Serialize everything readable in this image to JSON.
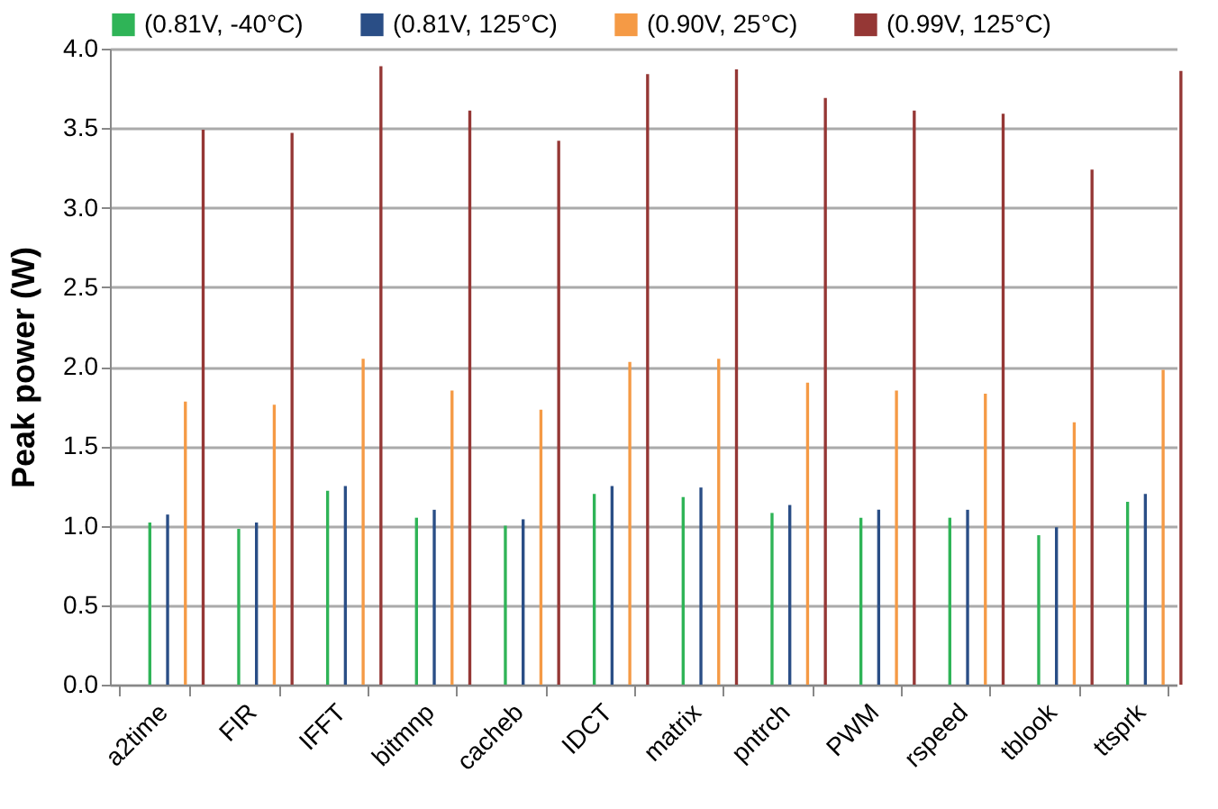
{
  "chart_data": {
    "type": "bar",
    "ylabel": "Peak power (W)",
    "categories": [
      "a2time",
      "FIR",
      "IFFT",
      "bitmnp",
      "cacheb",
      "IDCT",
      "matrix",
      "pntrch",
      "PWM",
      "rspeed",
      "tblook",
      "ttsprk"
    ],
    "series": [
      {
        "name": "(0.81V, -40°C)",
        "color": "#2fb457",
        "values": [
          1.02,
          0.98,
          1.22,
          1.05,
          1.0,
          1.2,
          1.18,
          1.08,
          1.05,
          1.05,
          0.94,
          1.15
        ]
      },
      {
        "name": "(0.81V, 125°C)",
        "color": "#2a4e86",
        "values": [
          1.07,
          1.02,
          1.25,
          1.1,
          1.04,
          1.25,
          1.24,
          1.13,
          1.1,
          1.1,
          0.99,
          1.2
        ]
      },
      {
        "name": "(0.90V, 25°C)",
        "color": "#f59a45",
        "values": [
          1.78,
          1.76,
          2.05,
          1.85,
          1.73,
          2.03,
          2.05,
          1.9,
          1.85,
          1.83,
          1.65,
          1.98
        ]
      },
      {
        "name": "(0.99V, 125°C)",
        "color": "#953735",
        "values": [
          3.49,
          3.47,
          3.89,
          3.61,
          3.42,
          3.84,
          3.87,
          3.69,
          3.61,
          3.59,
          3.24,
          3.86
        ]
      }
    ],
    "ylim": [
      0,
      4
    ],
    "yticks": [
      {
        "value": 0,
        "label": "0.0"
      },
      {
        "value": 0.5,
        "label": "0.5"
      },
      {
        "value": 1,
        "label": "1.0"
      },
      {
        "value": 1.5,
        "label": "1.5"
      },
      {
        "value": 2,
        "label": "2.0"
      },
      {
        "value": 2.5,
        "label": "2.5"
      },
      {
        "value": 3,
        "label": "3.0"
      },
      {
        "value": 3.5,
        "label": "3.5"
      },
      {
        "value": 4,
        "label": "4.0"
      }
    ],
    "grid": "y",
    "legend": "top"
  }
}
